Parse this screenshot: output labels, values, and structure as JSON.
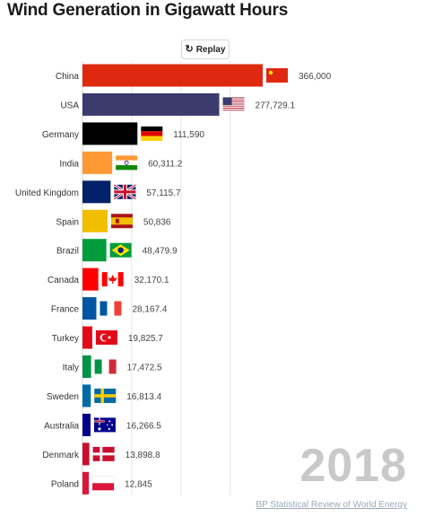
{
  "title": "Wind Generation in Gigawatt Hours",
  "replay": {
    "label": "Replay",
    "icon": "replay-icon"
  },
  "year": "2018",
  "source": "BP Statistical Review of World Energy",
  "chart_data": {
    "type": "bar",
    "orientation": "horizontal",
    "title": "Wind Generation in Gigawatt Hours",
    "categories": [
      "China",
      "USA",
      "Germany",
      "India",
      "United Kingdom",
      "Spain",
      "Brazil",
      "Canada",
      "France",
      "Turkey",
      "Italy",
      "Sweden",
      "Australia",
      "Denmark",
      "Poland"
    ],
    "values": [
      366000,
      277729.1,
      111590,
      60311.2,
      57115.7,
      50836,
      48479.9,
      32170.1,
      28167.4,
      19825.7,
      17472.5,
      16813.4,
      16266.5,
      13898.8,
      12845
    ],
    "value_labels": [
      "366,000",
      "277,729.1",
      "111,590",
      "60,311.2",
      "57,115.7",
      "50,836",
      "48,479.9",
      "32,170.1",
      "28,167.4",
      "19,825.7",
      "17,472.5",
      "16,813.4",
      "16,266.5",
      "13,898.8",
      "12,845"
    ],
    "xlim": [
      0,
      400000
    ],
    "grid": true,
    "colors": [
      "#de2910",
      "#3c3b6e",
      "#000000",
      "#ff9933",
      "#012169",
      "#f1bf00",
      "#009c3b",
      "#ff0000",
      "#0055a4",
      "#e30a17",
      "#009246",
      "#006aa7",
      "#00008b",
      "#c8102e",
      "#dc143c"
    ],
    "flags": [
      "china-flag",
      "usa-flag",
      "germany-flag",
      "india-flag",
      "uk-flag",
      "spain-flag",
      "brazil-flag",
      "canada-flag",
      "france-flag",
      "turkey-flag",
      "italy-flag",
      "sweden-flag",
      "australia-flag",
      "denmark-flag",
      "poland-flag"
    ]
  }
}
